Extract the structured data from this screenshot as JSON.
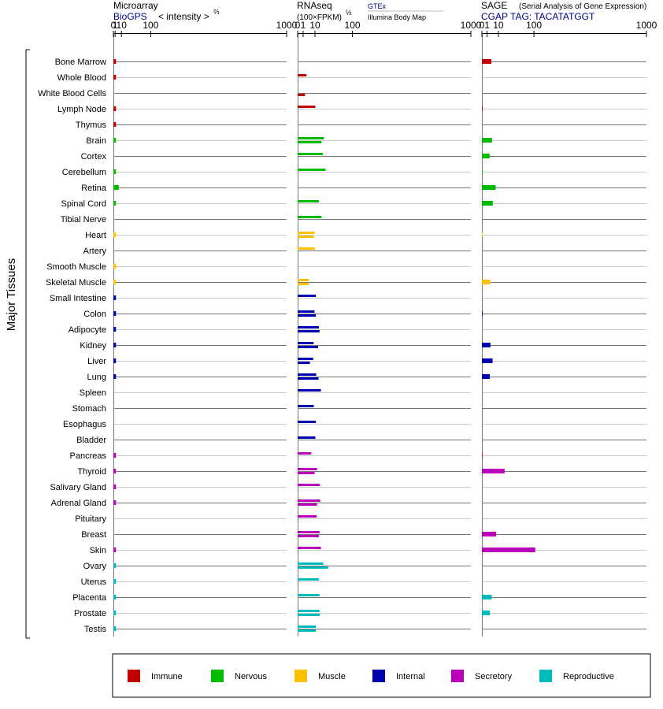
{
  "y_axis_label": "Major Tissues",
  "panel_headers": {
    "microarray": {
      "title": "Microarray",
      "source": "BioGPS",
      "unit": "< intensity >",
      "unit_exponent": "⅔"
    },
    "rnaseq": {
      "title": "RNAseq",
      "unit": "(100×FPKM)",
      "unit_exponent": "½",
      "source_1": "GTEx",
      "source_2": "Illumina Body Map"
    },
    "sage": {
      "title": "SAGE",
      "subtitle": "(Serial Analysis of Gene Expression)",
      "source": "CGAP",
      "tag": "TAG: TACATATGGT"
    }
  },
  "legend": [
    {
      "label": "Immune",
      "color": "#c00000"
    },
    {
      "label": "Nervous",
      "color": "#00bb00"
    },
    {
      "label": "Muscle",
      "color": "#ffc000"
    },
    {
      "label": "Internal",
      "color": "#0000b0"
    },
    {
      "label": "Secretory",
      "color": "#bb00bb"
    },
    {
      "label": "Reproductive",
      "color": "#00bbbb"
    }
  ],
  "chart_data": {
    "type": "bar",
    "orientation": "horizontal",
    "scale": "power",
    "tick_labels": [
      "0",
      "1",
      "10",
      "100",
      "1000"
    ],
    "xlim": [
      0,
      1000
    ],
    "categories": [
      "Bone Marrow",
      "Whole Blood",
      "White Blood Cells",
      "Lymph Node",
      "Thymus",
      "Brain",
      "Cortex",
      "Cerebellum",
      "Retina",
      "Spinal Cord",
      "Tibial Nerve",
      "Heart",
      "Artery",
      "Smooth Muscle",
      "Skeletal Muscle",
      "Small Intestine",
      "Colon",
      "Adipocyte",
      "Kidney",
      "Liver",
      "Lung",
      "Spleen",
      "Stomach",
      "Esophagus",
      "Bladder",
      "Pancreas",
      "Thyroid",
      "Salivary Gland",
      "Adrenal Gland",
      "Pituitary",
      "Breast",
      "Skin",
      "Ovary",
      "Uterus",
      "Placenta",
      "Prostate",
      "Testis"
    ],
    "groups": [
      "Immune",
      "Immune",
      "Immune",
      "Immune",
      "Immune",
      "Nervous",
      "Nervous",
      "Nervous",
      "Nervous",
      "Nervous",
      "Nervous",
      "Muscle",
      "Muscle",
      "Muscle",
      "Muscle",
      "Internal",
      "Internal",
      "Internal",
      "Internal",
      "Internal",
      "Internal",
      "Internal",
      "Internal",
      "Internal",
      "Internal",
      "Secretory",
      "Secretory",
      "Secretory",
      "Secretory",
      "Secretory",
      "Secretory",
      "Secretory",
      "Reproductive",
      "Reproductive",
      "Reproductive",
      "Reproductive",
      "Reproductive"
    ],
    "microarray": [
      1.8,
      1.8,
      null,
      1.8,
      1.8,
      1.8,
      null,
      1.8,
      5.5,
      1.8,
      null,
      1.7,
      null,
      1.8,
      1.8,
      1.8,
      1.8,
      1.8,
      1.8,
      1.8,
      1.8,
      null,
      null,
      null,
      null,
      1.8,
      1.8,
      1.8,
      1.8,
      null,
      null,
      1.8,
      1.8,
      1.8,
      1.8,
      1.8,
      1.8
    ],
    "rnaseq_gtex": [
      null,
      2.6,
      null,
      10.5,
      null,
      23,
      21,
      26,
      null,
      15,
      19,
      9.5,
      10,
      null,
      4,
      11,
      9.5,
      15,
      8.5,
      8,
      11.5,
      18,
      8.7,
      11,
      10.5,
      6.2,
      12.5,
      16.5,
      17,
      12,
      16,
      18,
      22,
      15,
      16,
      16,
      11
    ],
    "rnaseq_ibm": [
      null,
      null,
      1.8,
      null,
      null,
      19,
      null,
      null,
      null,
      null,
      null,
      8.5,
      null,
      null,
      4,
      null,
      11,
      16,
      14,
      5,
      14.5,
      null,
      null,
      null,
      null,
      null,
      9.5,
      null,
      12.5,
      null,
      15,
      null,
      31,
      null,
      null,
      16.5,
      11
    ],
    "sage": [
      3.3,
      null,
      null,
      0.002,
      null,
      3.8,
      2.2,
      0.002,
      7,
      4.4,
      null,
      0.001,
      null,
      null,
      2.5,
      null,
      0.002,
      null,
      2.7,
      4.2,
      2.3,
      null,
      null,
      null,
      null,
      0.002,
      19,
      null,
      null,
      null,
      7.5,
      105,
      null,
      null,
      3.6,
      2.4,
      null
    ]
  }
}
